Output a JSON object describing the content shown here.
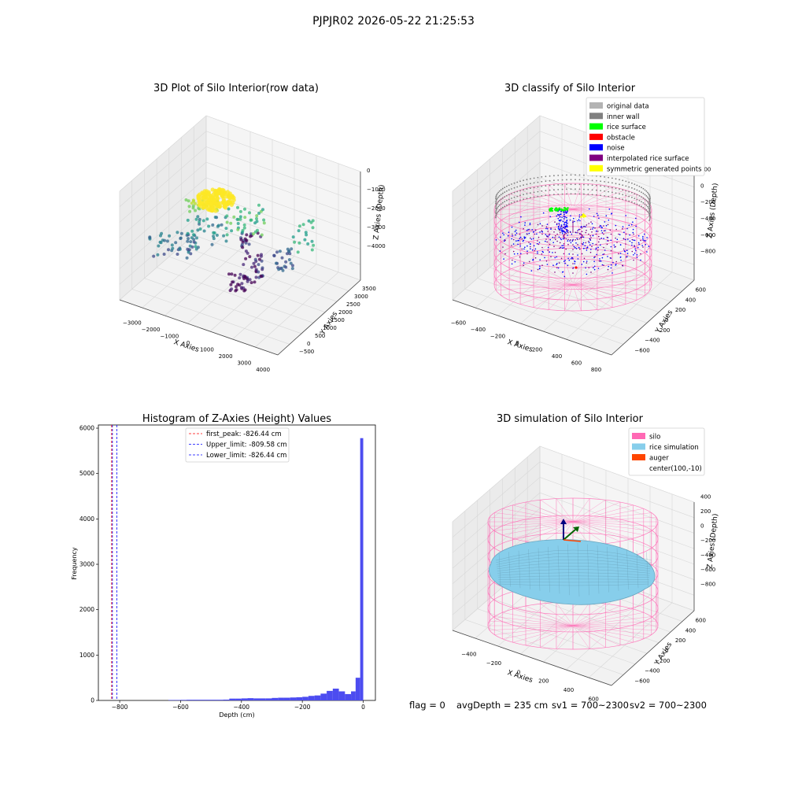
{
  "figure": {
    "suptitle": "PJPJR02 2026-05-22 21:25:53",
    "footer": {
      "flag": "flag = 0",
      "avg_depth": "avgDepth = 235 cm",
      "sv1": "sv1 = 700~2300",
      "sv2": "sv2 = 700~2300"
    }
  },
  "colors": {
    "original_data": "#b3b3b3",
    "inner_wall": "#808080",
    "rice_surface": "#00ff00",
    "obstacle": "#ff0000",
    "noise": "#0000ff",
    "interpolated_rice_surface": "#800080",
    "symmetric_generated_points": "#ffff00",
    "silo": "#ff69b4",
    "rice_simulation": "#87ceeb",
    "auger": "#ff4500",
    "hist_bar": "#4c4cf0",
    "first_peak": "#ff0000",
    "limits": "#0000ff"
  },
  "chart_data": [
    {
      "type": "scatter",
      "projection": "3d",
      "title": "3D Plot of Silo Interior(row data)",
      "xlabel": "X Axies",
      "ylabel": "Y Axies",
      "zlabel": "Z Axies (Depth)",
      "xticks": [
        "−3000",
        "−2000",
        "−1000",
        "0",
        "1000",
        "2000",
        "3000",
        "4000"
      ],
      "yticks": [
        "−500",
        "0",
        "500",
        "1000",
        "1500",
        "2000",
        "2500",
        "3000",
        "3500"
      ],
      "zticks": [
        "0",
        "−1000",
        "−2000",
        "−3000",
        "−4000"
      ],
      "colormap": "viridis"
    },
    {
      "type": "scatter",
      "projection": "3d",
      "title": "3D classify of Silo Interior",
      "xlabel": "X Axies",
      "ylabel": "Y Axies",
      "zlabel": "Z Axies (Depth)",
      "xticks": [
        "−600",
        "−400",
        "−200",
        "0",
        "200",
        "400",
        "600",
        "800"
      ],
      "yticks": [
        "−600",
        "−400",
        "−200",
        "0",
        "200",
        "400",
        "600"
      ],
      "zticks": [
        "200",
        "0",
        "−200",
        "−400",
        "−600",
        "−800"
      ],
      "legend_position": "top-right",
      "legend": [
        {
          "label": "original data",
          "color_key": "original_data"
        },
        {
          "label": "inner wall",
          "color_key": "inner_wall"
        },
        {
          "label": "rice surface",
          "color_key": "rice_surface"
        },
        {
          "label": "obstacle",
          "color_key": "obstacle"
        },
        {
          "label": "noise",
          "color_key": "noise"
        },
        {
          "label": "interpolated rice surface",
          "color_key": "interpolated_rice_surface"
        },
        {
          "label": "symmetric generated points",
          "color_key": "symmetric_generated_points"
        }
      ]
    },
    {
      "type": "bar",
      "title": "Histogram of Z-Axies (Height) Values",
      "xlabel": "Depth (cm)",
      "ylabel": "Frequency",
      "xlim": [
        -870,
        40
      ],
      "ylim": [
        0,
        6070
      ],
      "xticks": [
        -800,
        -600,
        -400,
        -200,
        0
      ],
      "yticks": [
        0,
        1000,
        2000,
        3000,
        4000,
        5000,
        6000
      ],
      "bins": [
        {
          "x0": -640,
          "x1": -620,
          "value": 10
        },
        {
          "x0": -620,
          "x1": -600,
          "value": 10
        },
        {
          "x0": -600,
          "x1": -580,
          "value": 12
        },
        {
          "x0": -580,
          "x1": -560,
          "value": 15
        },
        {
          "x0": -560,
          "x1": -540,
          "value": 15
        },
        {
          "x0": -540,
          "x1": -520,
          "value": 15
        },
        {
          "x0": -520,
          "x1": -500,
          "value": 15
        },
        {
          "x0": -500,
          "x1": -480,
          "value": 15
        },
        {
          "x0": -480,
          "x1": -460,
          "value": 15
        },
        {
          "x0": -460,
          "x1": -440,
          "value": 18
        },
        {
          "x0": -440,
          "x1": -420,
          "value": 40
        },
        {
          "x0": -420,
          "x1": -400,
          "value": 40
        },
        {
          "x0": -400,
          "x1": -380,
          "value": 45
        },
        {
          "x0": -380,
          "x1": -360,
          "value": 50
        },
        {
          "x0": -360,
          "x1": -340,
          "value": 45
        },
        {
          "x0": -340,
          "x1": -320,
          "value": 45
        },
        {
          "x0": -320,
          "x1": -300,
          "value": 45
        },
        {
          "x0": -300,
          "x1": -280,
          "value": 55
        },
        {
          "x0": -280,
          "x1": -260,
          "value": 60
        },
        {
          "x0": -260,
          "x1": -240,
          "value": 60
        },
        {
          "x0": -240,
          "x1": -220,
          "value": 65
        },
        {
          "x0": -220,
          "x1": -200,
          "value": 70
        },
        {
          "x0": -200,
          "x1": -180,
          "value": 80
        },
        {
          "x0": -180,
          "x1": -160,
          "value": 100
        },
        {
          "x0": -160,
          "x1": -140,
          "value": 110
        },
        {
          "x0": -140,
          "x1": -120,
          "value": 150
        },
        {
          "x0": -120,
          "x1": -100,
          "value": 210
        },
        {
          "x0": -100,
          "x1": -80,
          "value": 260
        },
        {
          "x0": -80,
          "x1": -60,
          "value": 200
        },
        {
          "x0": -60,
          "x1": -40,
          "value": 140
        },
        {
          "x0": -40,
          "x1": -25,
          "value": 200
        },
        {
          "x0": -25,
          "x1": -10,
          "value": 500
        },
        {
          "x0": -10,
          "x1": 0,
          "value": 5780
        }
      ],
      "vlines": [
        {
          "x": -826.44,
          "label": "first_peak: -826.44 cm",
          "style": "dashed",
          "color_key": "first_peak"
        },
        {
          "x": -809.58,
          "label": "Upper_limit: -809.58 cm",
          "style": "dashed",
          "color_key": "limits"
        },
        {
          "x": -826.44,
          "label": "Lower_limit: -826.44 cm",
          "style": "dashed",
          "color_key": "limits"
        }
      ],
      "legend_position": "top-center"
    },
    {
      "type": "surface",
      "projection": "3d",
      "title": "3D simulation of Silo Interior",
      "xlabel": "X Axies",
      "ylabel": "Y Axies",
      "zlabel": "Z Axies (Depth)",
      "xticks": [
        "−400",
        "−200",
        "0",
        "200",
        "400",
        "600"
      ],
      "yticks": [
        "−600",
        "−400",
        "−200",
        "0",
        "200",
        "400",
        "600"
      ],
      "zticks": [
        "400",
        "200",
        "0",
        "−200",
        "−400",
        "−600",
        "−800"
      ],
      "legend_position": "top-right",
      "legend": [
        {
          "label": "silo",
          "color_key": "silo"
        },
        {
          "label": "rice simulation",
          "color_key": "rice_simulation"
        },
        {
          "label": "auger",
          "color_key": "auger"
        },
        {
          "label": "center(100,-10)",
          "color_key": ""
        }
      ]
    }
  ]
}
